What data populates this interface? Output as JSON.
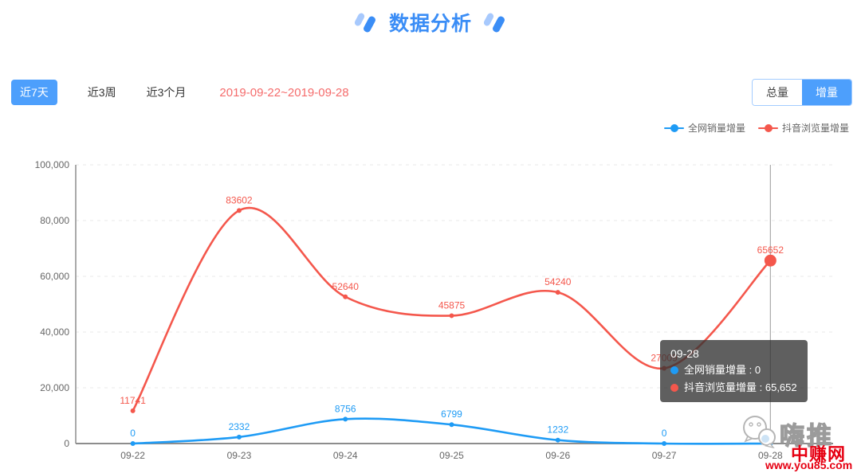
{
  "header": {
    "title": "数据分析"
  },
  "tabs": [
    {
      "label": "近7天",
      "active": true
    },
    {
      "label": "近3周",
      "active": false
    },
    {
      "label": "近3个月",
      "active": false
    }
  ],
  "date_range": "2019-09-22~2019-09-28",
  "mode_toggle": [
    {
      "label": "总量",
      "active": false
    },
    {
      "label": "增量",
      "active": true
    }
  ],
  "legend": [
    {
      "label": "全网销量增量",
      "color": "#1e9bf5"
    },
    {
      "label": "抖音浏览量增量",
      "color": "#f4574c"
    }
  ],
  "chart_data": {
    "type": "line",
    "smooth": true,
    "categories": [
      "09-22",
      "09-23",
      "09-24",
      "09-25",
      "09-26",
      "09-27",
      "09-28"
    ],
    "series": [
      {
        "name": "全网销量增量",
        "color": "#1e9bf5",
        "values": [
          0,
          2332,
          8756,
          6799,
          1232,
          0,
          0
        ]
      },
      {
        "name": "抖音浏览量增量",
        "color": "#f4574c",
        "values": [
          11741,
          83602,
          52640,
          45875,
          54240,
          27009,
          65652
        ]
      }
    ],
    "ylim": [
      0,
      100000
    ],
    "y_ticks": [
      "100,000",
      "80,000",
      "60,000",
      "40,000",
      "20,000",
      "0"
    ],
    "grid": "dashed-horizontal",
    "legend_position": "top-right",
    "hover_index": 6,
    "axis_color": "#999999",
    "grid_color": "#e8e8e8",
    "tick_text_color": "#666666"
  },
  "tooltip": {
    "title": "09-28",
    "separator": " : ",
    "rows": [
      {
        "label": "全网销量增量",
        "value": "0",
        "color": "#1e9bf5"
      },
      {
        "label": "抖音浏览量增量",
        "value": "65,652",
        "color": "#f4574c"
      }
    ]
  },
  "watermark": {
    "icon": "wechat-icon",
    "name": "嗨推",
    "site": "中赚网",
    "url": "www.you85.com"
  }
}
